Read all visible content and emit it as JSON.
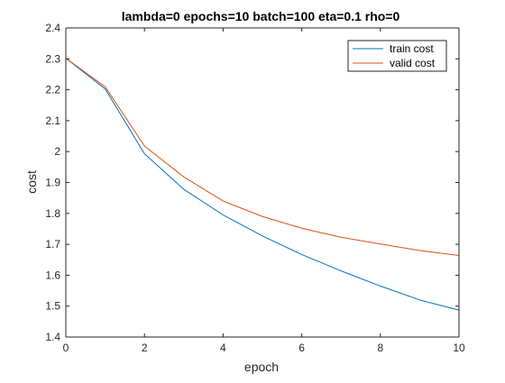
{
  "chart_data": {
    "type": "line",
    "title": "lambda=0 epochs=10 batch=100 eta=0.1 rho=0",
    "xlabel": "epoch",
    "ylabel": "cost",
    "xlim": [
      0,
      10
    ],
    "ylim": [
      1.4,
      2.4
    ],
    "xticks": [
      "0",
      "2",
      "4",
      "6",
      "8",
      "10"
    ],
    "yticks": [
      "1.4",
      "1.5",
      "1.6",
      "1.7",
      "1.8",
      "1.9",
      "2",
      "2.1",
      "2.2",
      "2.3",
      "2.4"
    ],
    "grid": false,
    "legend_position": "top-right",
    "x": [
      0,
      1,
      2,
      3,
      4,
      5,
      6,
      7,
      8,
      9,
      10
    ],
    "series": [
      {
        "name": "train cost",
        "color": "#0072BD",
        "values": [
          2.302,
          2.203,
          1.993,
          1.878,
          1.795,
          1.727,
          1.667,
          1.614,
          1.565,
          1.52,
          1.487
        ]
      },
      {
        "name": "valid cost",
        "color": "#D95319",
        "values": [
          2.302,
          2.21,
          2.018,
          1.918,
          1.84,
          1.79,
          1.752,
          1.723,
          1.701,
          1.68,
          1.664
        ]
      }
    ]
  }
}
